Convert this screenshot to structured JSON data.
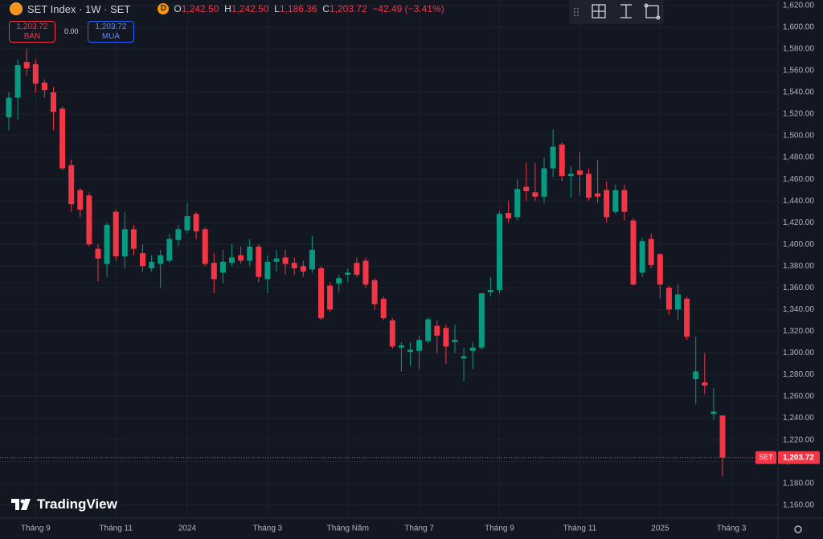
{
  "header": {
    "symbol": "SET Index · 1W · SET",
    "badge": "D",
    "ohlc": [
      {
        "key": "O",
        "value": "1,242.50"
      },
      {
        "key": "H",
        "value": "1,242.50"
      },
      {
        "key": "L",
        "value": "1,186.36"
      },
      {
        "key": "C",
        "value": "1,203.72"
      }
    ],
    "change": "−42.49 (−3.41%)"
  },
  "trade": {
    "sell_price": "1,203.72",
    "sell_label": "BÁN",
    "spread": "0.00",
    "buy_price": "1,203.72",
    "buy_label": "MUA"
  },
  "last_price": {
    "symbol": "SET",
    "label": "1,203.72"
  },
  "watermark": "TradingView",
  "chart_data": {
    "type": "candlestick",
    "categories": [
      null,
      null,
      null,
      "Tháng 9",
      null,
      null,
      null,
      null,
      null,
      null,
      null,
      null,
      "Tháng 11",
      null,
      null,
      null,
      null,
      null,
      null,
      null,
      "2024",
      null,
      null,
      null,
      null,
      null,
      null,
      null,
      null,
      "Tháng 3",
      null,
      null,
      null,
      null,
      null,
      null,
      null,
      null,
      "Tháng Năm",
      null,
      null,
      null,
      null,
      null,
      null,
      null,
      "Tháng 7",
      null,
      null,
      null,
      null,
      null,
      null,
      null,
      null,
      "Tháng 9",
      null,
      null,
      null,
      null,
      null,
      null,
      null,
      null,
      "Tháng 11",
      null,
      null,
      null,
      null,
      null,
      null,
      null,
      null,
      "2025",
      null,
      null,
      null,
      null,
      null,
      null,
      null,
      "Tháng 3"
    ],
    "open": [
      1517,
      1535,
      1568,
      1566,
      1549,
      1540,
      1525,
      1473,
      1450,
      1445,
      1396,
      1382,
      1430,
      1389,
      1414,
      1392,
      1378,
      1382,
      1385,
      1404,
      1413,
      1428,
      1414,
      1383,
      1374,
      1383,
      1390,
      1385,
      1398,
      1368,
      1384,
      1388,
      1383,
      1380,
      1377,
      1378,
      1362,
      1364,
      1372,
      1383,
      1385,
      1367,
      1350,
      1330,
      1305,
      1301,
      1302,
      1311,
      1325,
      1323,
      1310,
      1295,
      1302,
      1305,
      1356,
      1358,
      1429,
      1425,
      1453,
      1448,
      1444,
      1470,
      1492,
      1463,
      1468,
      1465,
      1447,
      1450,
      1430,
      1450,
      1422,
      1374,
      1405,
      1391,
      1360,
      1340,
      1350,
      1276,
      1273,
      1244,
      1242.5,
      null
    ],
    "high": [
      1540,
      1570,
      1580,
      1570,
      1552,
      1545,
      1527,
      1478,
      1452,
      1448,
      1400,
      1420,
      1432,
      1430,
      1418,
      1400,
      1390,
      1395,
      1410,
      1418,
      1438,
      1430,
      1416,
      1392,
      1395,
      1400,
      1398,
      1405,
      1400,
      1390,
      1395,
      1395,
      1388,
      1385,
      1408,
      1380,
      1365,
      1372,
      1378,
      1388,
      1388,
      1369,
      1352,
      1332,
      1310,
      1310,
      1316,
      1333,
      1330,
      1326,
      1326,
      1305,
      1310,
      1355,
      1370,
      1430,
      1440,
      1460,
      1475,
      1475,
      1480,
      1506,
      1494,
      1472,
      1485,
      1470,
      1478,
      1458,
      1455,
      1455,
      1424,
      1406,
      1410,
      1392,
      1362,
      1363,
      1352,
      1315,
      1300,
      1268,
      1242.5,
      null
    ],
    "low": [
      1505,
      1515,
      1555,
      1540,
      1535,
      1505,
      1468,
      1430,
      1425,
      1398,
      1366,
      1370,
      1385,
      1378,
      1390,
      1375,
      1375,
      1360,
      1383,
      1398,
      1410,
      1405,
      1380,
      1355,
      1364,
      1380,
      1382,
      1380,
      1365,
      1355,
      1375,
      1372,
      1372,
      1370,
      1374,
      1330,
      1338,
      1356,
      1365,
      1370,
      1360,
      1340,
      1330,
      1304,
      1283,
      1288,
      1285,
      1309,
      1300,
      1290,
      1300,
      1274,
      1285,
      1303,
      1352,
      1355,
      1420,
      1422,
      1440,
      1440,
      1438,
      1462,
      1458,
      1443,
      1445,
      1440,
      1438,
      1420,
      1428,
      1422,
      1362,
      1370,
      1378,
      1350,
      1335,
      1330,
      1312,
      1253,
      1262,
      1238,
      1186.36,
      null
    ],
    "close": [
      1535,
      1565,
      1562,
      1548,
      1542,
      1522,
      1470,
      1437,
      1432,
      1400,
      1387,
      1418,
      1389,
      1414,
      1396,
      1380,
      1384,
      1390,
      1405,
      1414,
      1426,
      1412,
      1382,
      1368,
      1384,
      1388,
      1385,
      1398,
      1370,
      1384,
      1387,
      1382,
      1378,
      1375,
      1395,
      1332,
      1340,
      1369,
      1374,
      1372,
      1363,
      1345,
      1332,
      1306,
      1307,
      1303,
      1312,
      1331,
      1316,
      1306,
      1312,
      1297,
      1305,
      1355,
      1358,
      1428,
      1424,
      1451,
      1449,
      1444,
      1470,
      1490,
      1463,
      1465,
      1464,
      1443,
      1444,
      1425,
      1450,
      1430,
      1363,
      1403,
      1381,
      1363,
      1340,
      1354,
      1315,
      1283,
      1270,
      1246,
      1203.72,
      null
    ],
    "up_color": "#089981",
    "down_color": "#f23645",
    "ylim": [
      1148,
      1625
    ],
    "yticks": [
      {
        "value": 1160,
        "label": "1,160.00"
      },
      {
        "value": 1180,
        "label": "1,180.00"
      },
      {
        "value": 1200,
        "label": "1,200.00"
      },
      {
        "value": 1220,
        "label": "1,220.00"
      },
      {
        "value": 1240,
        "label": "1,240.00"
      },
      {
        "value": 1260,
        "label": "1,260.00"
      },
      {
        "value": 1280,
        "label": "1,280.00"
      },
      {
        "value": 1300,
        "label": "1,300.00"
      },
      {
        "value": 1320,
        "label": "1,320.00"
      },
      {
        "value": 1340,
        "label": "1,340.00"
      },
      {
        "value": 1360,
        "label": "1,360.00"
      },
      {
        "value": 1380,
        "label": "1,380.00"
      },
      {
        "value": 1400,
        "label": "1,400.00"
      },
      {
        "value": 1420,
        "label": "1,420.00"
      },
      {
        "value": 1440,
        "label": "1,440.00"
      },
      {
        "value": 1460,
        "label": "1,460.00"
      },
      {
        "value": 1480,
        "label": "1,480.00"
      },
      {
        "value": 1500,
        "label": "1,500.00"
      },
      {
        "value": 1520,
        "label": "1,520.00"
      },
      {
        "value": 1540,
        "label": "1,540.00"
      },
      {
        "value": 1560,
        "label": "1,560.00"
      },
      {
        "value": 1580,
        "label": "1,580.00"
      },
      {
        "value": 1600,
        "label": "1,600.00"
      },
      {
        "value": 1620,
        "label": "1,620.00"
      }
    ],
    "grid": true
  }
}
